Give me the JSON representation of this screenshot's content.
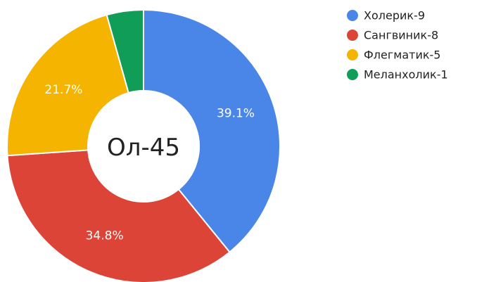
{
  "chart_data": {
    "type": "pie",
    "donut": true,
    "center_label": "Ол-45",
    "categories": [
      "Холерик",
      "Сангвиник",
      "Флегматик",
      "Меланхолик"
    ],
    "values": [
      9,
      8,
      5,
      1
    ],
    "legend_labels": [
      "Холерик-9",
      "Сангвиник-8",
      "Флегматик-5",
      "Меланхолик-1"
    ],
    "data_labels": [
      "39.1%",
      "34.8%",
      "21.7%",
      ""
    ],
    "colors": [
      "#4a86e8",
      "#db4437",
      "#f4b400",
      "#0f9d58"
    ],
    "legend_position": "top-right",
    "start_angle": "top",
    "direction": "clockwise"
  }
}
